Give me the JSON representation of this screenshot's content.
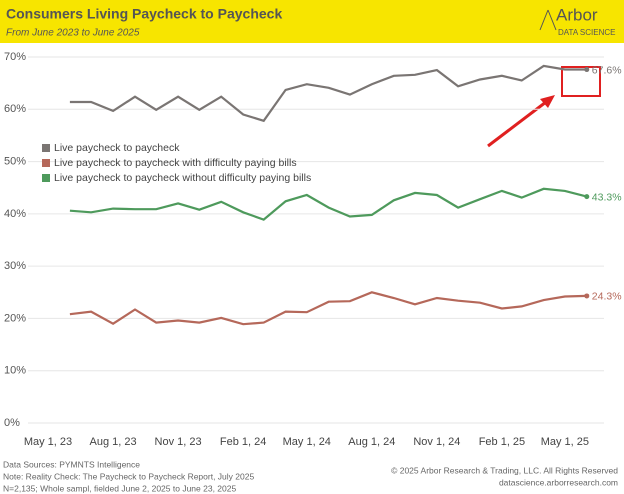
{
  "chart_data": {
    "type": "line",
    "title": "Consumers Living Paycheck to Paycheck",
    "subtitle": "From June 2023 to June 2025",
    "logo": {
      "name": "Arbor",
      "tagline": "DATA SCIENCE"
    },
    "x": [
      "2023-06-01",
      "2023-07-01",
      "2023-08-01",
      "2023-09-01",
      "2023-10-01",
      "2023-11-01",
      "2023-12-01",
      "2024-01-01",
      "2024-02-01",
      "2024-03-01",
      "2024-04-01",
      "2024-05-01",
      "2024-06-01",
      "2024-07-01",
      "2024-08-01",
      "2024-09-01",
      "2024-10-01",
      "2024-11-01",
      "2024-12-01",
      "2025-01-01",
      "2025-02-01",
      "2025-03-01",
      "2025-04-01",
      "2025-05-01",
      "2025-06-01"
    ],
    "xlim": [
      "2023-05-01",
      "2025-07-01"
    ],
    "xticks": [
      {
        "value": "2023-05-01",
        "label": "May 1, 23"
      },
      {
        "value": "2023-08-01",
        "label": "Aug 1, 23"
      },
      {
        "value": "2023-11-01",
        "label": "Nov 1, 23"
      },
      {
        "value": "2024-02-01",
        "label": "Feb 1, 24"
      },
      {
        "value": "2024-05-01",
        "label": "May 1, 24"
      },
      {
        "value": "2024-08-01",
        "label": "Aug 1, 24"
      },
      {
        "value": "2024-11-01",
        "label": "Nov 1, 24"
      },
      {
        "value": "2025-02-01",
        "label": "Feb 1, 25"
      },
      {
        "value": "2025-05-01",
        "label": "May 1, 25"
      }
    ],
    "ylim": [
      0,
      70
    ],
    "yticks": [
      {
        "value": 0,
        "label": "0%"
      },
      {
        "value": 10,
        "label": "10%"
      },
      {
        "value": 20,
        "label": "20%"
      },
      {
        "value": 30,
        "label": "30%"
      },
      {
        "value": 40,
        "label": "40%"
      },
      {
        "value": 50,
        "label": "50%"
      },
      {
        "value": 60,
        "label": "60%"
      },
      {
        "value": 70,
        "label": "70%"
      }
    ],
    "series": [
      {
        "name": "Live paycheck to paycheck",
        "color": "#7a7573",
        "values": [
          61.4,
          61.4,
          59.7,
          62.4,
          59.9,
          62.4,
          59.9,
          62.4,
          59.0,
          57.8,
          63.7,
          64.8,
          64.1,
          62.8,
          64.8,
          66.4,
          66.6,
          67.5,
          64.4,
          65.7,
          66.4,
          65.5,
          68.3,
          67.6,
          67.6
        ],
        "value_labels": [
          null,
          null,
          null,
          null,
          null,
          null,
          null,
          null,
          null,
          null,
          null,
          null,
          null,
          null,
          null,
          null,
          null,
          null,
          null,
          null,
          null,
          null,
          null,
          null,
          "67.6%"
        ]
      },
      {
        "name": "Live paycheck to paycheck with difficulty paying bills",
        "color": "#b5685a",
        "values": [
          20.8,
          21.3,
          19.0,
          21.7,
          19.2,
          19.6,
          19.2,
          20.1,
          18.9,
          19.2,
          21.3,
          21.2,
          23.2,
          23.3,
          25.0,
          23.9,
          22.7,
          23.9,
          23.4,
          23.0,
          21.9,
          22.3,
          23.5,
          24.2,
          24.3
        ],
        "value_labels": [
          null,
          null,
          null,
          null,
          null,
          null,
          null,
          null,
          null,
          null,
          null,
          null,
          null,
          null,
          null,
          null,
          null,
          null,
          null,
          null,
          null,
          null,
          null,
          null,
          "24.3%"
        ]
      },
      {
        "name": "Live paycheck to paycheck without difficulty paying bills",
        "color": "#4e9a5c",
        "values": [
          40.6,
          40.3,
          41.0,
          40.9,
          40.9,
          42.0,
          40.8,
          42.3,
          40.3,
          38.9,
          42.4,
          43.6,
          41.2,
          39.5,
          39.8,
          42.6,
          44.0,
          43.6,
          41.2,
          42.8,
          44.4,
          43.1,
          44.8,
          44.4,
          43.3
        ],
        "value_labels": [
          null,
          null,
          null,
          null,
          null,
          null,
          null,
          null,
          null,
          null,
          null,
          null,
          null,
          null,
          null,
          null,
          null,
          null,
          null,
          null,
          null,
          null,
          null,
          null,
          "43.3%"
        ]
      }
    ],
    "grid": true,
    "footer": {
      "left": [
        "Data Sources: PYMNTS Intelligence",
        "Note: Reality Check: The Paycheck to Paycheck Report, July 2025",
        "N=2,135; Whole sampl, fielded June 2, 2025 to June 23, 2025"
      ],
      "right": [
        "© 2025 Arbor Research & Trading, LLC. All Rights Reserved",
        "datascience.arborresearch.com"
      ]
    }
  }
}
